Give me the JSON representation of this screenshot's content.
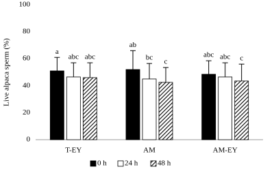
{
  "chart_data": {
    "type": "bar",
    "y_label": "Live alpaca sperm (%)",
    "categories": [
      "T-EY",
      "AM",
      "AM-EY"
    ],
    "series": [
      {
        "name": "0 h",
        "color": "#000000",
        "values": [
          51,
          52,
          48.5
        ],
        "errors": [
          10,
          14,
          10
        ],
        "labels": [
          "a",
          "ab",
          "abc"
        ]
      },
      {
        "name": "24 h",
        "color": "#ffffff",
        "values": [
          46.5,
          45,
          46.5
        ],
        "errors": [
          10.5,
          11.5,
          10.5
        ],
        "labels": [
          "abc",
          "bc",
          "abc"
        ]
      },
      {
        "name": "48 h",
        "color": "#000000",
        "hatch": true,
        "values": [
          46,
          42.5,
          43.5
        ],
        "errors": [
          11,
          11,
          12.5
        ],
        "labels": [
          "abc",
          "c",
          "c"
        ]
      }
    ],
    "ylim": [
      0,
      100
    ],
    "yticks": [
      0,
      20,
      40,
      60,
      80,
      100
    ],
    "grid": false,
    "legend": "bottom"
  }
}
